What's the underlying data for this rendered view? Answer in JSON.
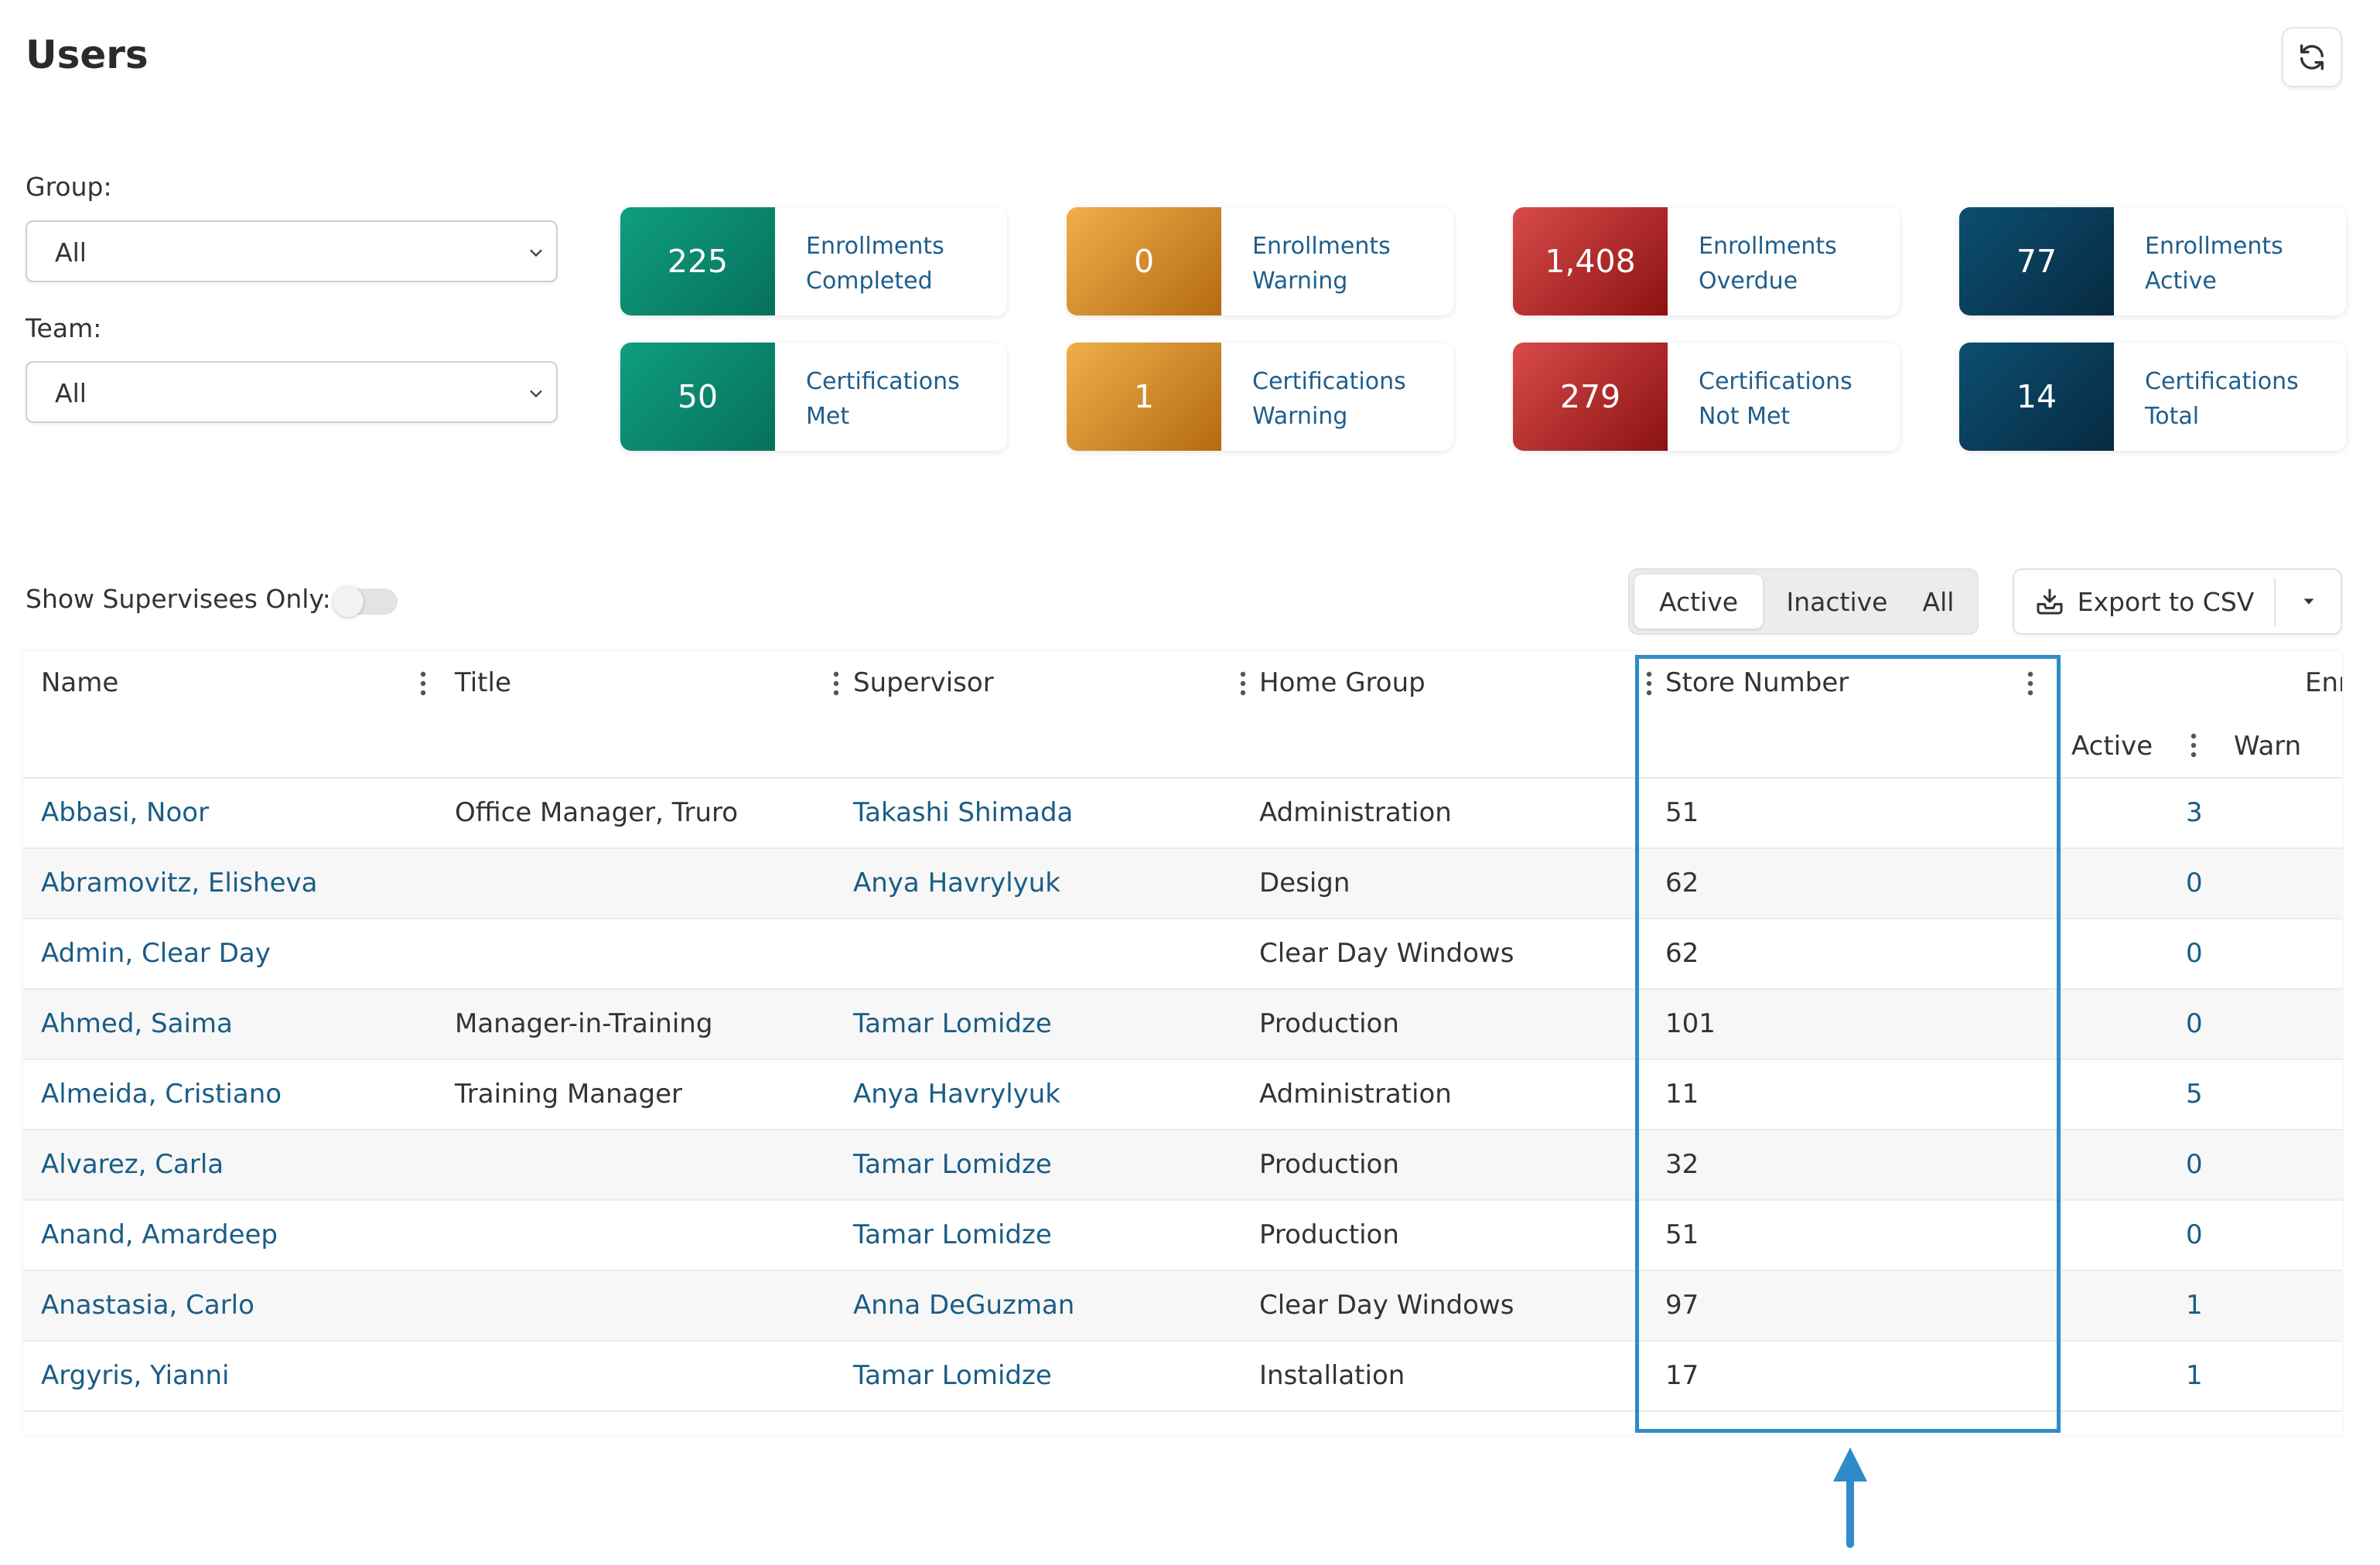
{
  "page": {
    "title": "Users"
  },
  "filters": {
    "group": {
      "label": "Group:",
      "value": "All"
    },
    "team": {
      "label": "Team:",
      "value": "All"
    }
  },
  "cards": [
    {
      "value": "225",
      "line1": "Enrollments",
      "line2": "Completed",
      "color": "#0b8a70"
    },
    {
      "value": "0",
      "line1": "Enrollments",
      "line2": "Warning",
      "color": "#e1962f"
    },
    {
      "value": "1,408",
      "line1": "Enrollments",
      "line2": "Overdue",
      "color": "#b52828"
    },
    {
      "value": "77",
      "line1": "Enrollments",
      "line2": "Active",
      "color": "#093d5a"
    },
    {
      "value": "50",
      "line1": "Certifications",
      "line2": "Met",
      "color": "#0b8a70"
    },
    {
      "value": "1",
      "line1": "Certifications",
      "line2": "Warning",
      "color": "#e1962f"
    },
    {
      "value": "279",
      "line1": "Certifications",
      "line2": "Not Met",
      "color": "#b52828"
    },
    {
      "value": "14",
      "line1": "Certifications",
      "line2": "Total",
      "color": "#093d5a"
    }
  ],
  "toolbar": {
    "supervisees_label": "Show Supervisees Only:",
    "supervisees_on": false,
    "status": {
      "active": "Active",
      "inactive": "Inactive",
      "all": "All",
      "selected": "Active"
    },
    "export_label": "Export to CSV"
  },
  "grid": {
    "columns": {
      "name": "Name",
      "title": "Title",
      "supervisor": "Supervisor",
      "home_group": "Home Group",
      "store_number": "Store Number",
      "enrollments_group": "Enr",
      "active": "Active",
      "warn": "Warn"
    },
    "rows": [
      {
        "name": "Abbasi, Noor",
        "title": "Office Manager, Truro",
        "supervisor": "Takashi Shimada",
        "home_group": "Administration",
        "store_number": "51",
        "active": "3"
      },
      {
        "name": "Abramovitz, Elisheva",
        "title": "",
        "supervisor": "Anya Havrylyuk",
        "home_group": "Design",
        "store_number": "62",
        "active": "0"
      },
      {
        "name": "Admin, Clear Day",
        "title": "",
        "supervisor": "",
        "home_group": "Clear Day Windows",
        "store_number": "62",
        "active": "0"
      },
      {
        "name": "Ahmed, Saima",
        "title": "Manager-in-Training",
        "supervisor": "Tamar Lomidze",
        "home_group": "Production",
        "store_number": "101",
        "active": "0"
      },
      {
        "name": "Almeida, Cristiano",
        "title": "Training Manager",
        "supervisor": "Anya Havrylyuk",
        "home_group": "Administration",
        "store_number": "11",
        "active": "5"
      },
      {
        "name": "Alvarez, Carla",
        "title": "",
        "supervisor": "Tamar Lomidze",
        "home_group": "Production",
        "store_number": "32",
        "active": "0"
      },
      {
        "name": "Anand, Amardeep",
        "title": "",
        "supervisor": "Tamar Lomidze",
        "home_group": "Production",
        "store_number": "51",
        "active": "0"
      },
      {
        "name": "Anastasia, Carlo",
        "title": "",
        "supervisor": "Anna DeGuzman",
        "home_group": "Clear Day Windows",
        "store_number": "97",
        "active": "1"
      },
      {
        "name": "Argyris, Yianni",
        "title": "",
        "supervisor": "Tamar Lomidze",
        "home_group": "Installation",
        "store_number": "17",
        "active": "1"
      }
    ]
  },
  "annotation": {
    "color": "#2f8bc9"
  },
  "colors": {
    "link": "#1a5d86",
    "highlight": "#2f8bc9"
  },
  "icons": {
    "refresh": "refresh-icon",
    "chevron": "chevron-down-icon",
    "export": "download-tray-icon",
    "caret": "caret-down-icon",
    "kebab": "kebab-menu-icon",
    "arrow": "arrow-up-icon"
  }
}
